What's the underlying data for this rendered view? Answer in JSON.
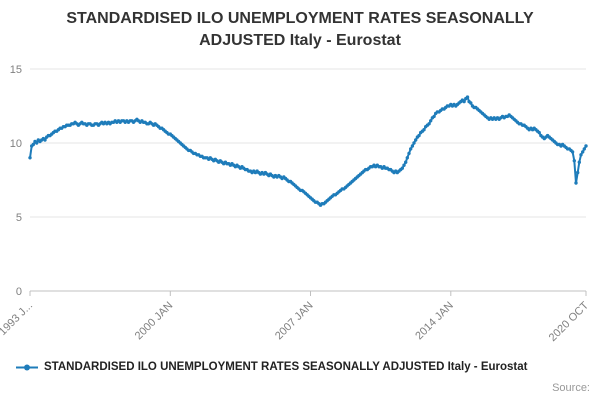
{
  "title": "STANDARDISED ILO UNEMPLOYMENT RATES SEASONALLY ADJUSTED Italy - Eurostat",
  "source_label": "Source:",
  "legend": {
    "label": "STANDARDISED ILO UNEMPLOYMENT RATES SEASONALLY ADJUSTED Italy - Eurostat"
  },
  "colors": {
    "line": "#1e7cba",
    "grid": "#e6e6e6",
    "axis": "#c0c0c0",
    "tick_text": "#808080"
  },
  "chart_data": {
    "type": "line",
    "title": "STANDARDISED ILO UNEMPLOYMENT RATES SEASONALLY ADJUSTED Italy - Eurostat",
    "xlabel": "",
    "ylabel": "",
    "x_start": "1993 JAN",
    "x_end": "2020 OCT",
    "frequency": "monthly",
    "ylim": [
      0,
      15
    ],
    "yticks": [
      0,
      5,
      10,
      15
    ],
    "grid": "horizontal-only",
    "legend_position": "bottom-left",
    "xticks": [
      {
        "label": "1993 J...",
        "index": 0
      },
      {
        "label": "2000 JAN",
        "index": 84
      },
      {
        "label": "2007 JAN",
        "index": 168
      },
      {
        "label": "2014 JAN",
        "index": 252
      },
      {
        "label": "2020 OCT",
        "index": 333
      }
    ],
    "series": [
      {
        "name": "STANDARDISED ILO UNEMPLOYMENT RATES SEASONALLY ADJUSTED Italy - Eurostat",
        "values": [
          9.0,
          9.8,
          9.9,
          10.1,
          10.0,
          10.2,
          10.1,
          10.2,
          10.3,
          10.2,
          10.4,
          10.5,
          10.5,
          10.6,
          10.7,
          10.8,
          10.8,
          10.9,
          11.0,
          11.0,
          11.1,
          11.1,
          11.2,
          11.2,
          11.2,
          11.3,
          11.3,
          11.4,
          11.3,
          11.2,
          11.3,
          11.4,
          11.3,
          11.3,
          11.2,
          11.3,
          11.3,
          11.2,
          11.2,
          11.3,
          11.3,
          11.2,
          11.3,
          11.4,
          11.3,
          11.4,
          11.3,
          11.4,
          11.3,
          11.4,
          11.4,
          11.5,
          11.4,
          11.5,
          11.4,
          11.5,
          11.5,
          11.4,
          11.5,
          11.4,
          11.5,
          11.5,
          11.4,
          11.5,
          11.6,
          11.5,
          11.4,
          11.5,
          11.4,
          11.4,
          11.3,
          11.3,
          11.4,
          11.3,
          11.2,
          11.3,
          11.2,
          11.1,
          11.0,
          11.0,
          10.9,
          10.8,
          10.7,
          10.6,
          10.6,
          10.5,
          10.4,
          10.3,
          10.2,
          10.1,
          10.0,
          9.9,
          9.8,
          9.7,
          9.6,
          9.5,
          9.5,
          9.4,
          9.3,
          9.3,
          9.2,
          9.2,
          9.1,
          9.1,
          9.0,
          9.0,
          9.0,
          8.9,
          9.0,
          8.9,
          8.8,
          8.9,
          8.8,
          8.7,
          8.8,
          8.7,
          8.6,
          8.7,
          8.6,
          8.6,
          8.5,
          8.6,
          8.5,
          8.4,
          8.5,
          8.4,
          8.3,
          8.4,
          8.3,
          8.2,
          8.2,
          8.1,
          8.1,
          8.0,
          8.1,
          8.0,
          8.1,
          8.0,
          7.9,
          8.0,
          7.9,
          8.0,
          7.9,
          7.8,
          7.9,
          7.8,
          7.7,
          7.8,
          7.7,
          7.8,
          7.7,
          7.6,
          7.7,
          7.6,
          7.5,
          7.4,
          7.4,
          7.3,
          7.2,
          7.1,
          7.0,
          6.9,
          6.8,
          6.8,
          6.7,
          6.6,
          6.5,
          6.4,
          6.3,
          6.2,
          6.1,
          6.0,
          6.0,
          5.9,
          5.8,
          5.9,
          5.9,
          6.0,
          6.1,
          6.2,
          6.3,
          6.4,
          6.5,
          6.5,
          6.6,
          6.7,
          6.8,
          6.9,
          6.9,
          7.0,
          7.1,
          7.2,
          7.3,
          7.4,
          7.5,
          7.6,
          7.7,
          7.8,
          7.9,
          8.0,
          8.1,
          8.2,
          8.2,
          8.3,
          8.4,
          8.4,
          8.5,
          8.4,
          8.5,
          8.4,
          8.4,
          8.3,
          8.4,
          8.3,
          8.3,
          8.2,
          8.2,
          8.1,
          8.0,
          8.1,
          8.0,
          8.1,
          8.2,
          8.3,
          8.5,
          8.7,
          9.0,
          9.3,
          9.6,
          9.8,
          10.0,
          10.2,
          10.4,
          10.5,
          10.7,
          10.8,
          10.9,
          11.1,
          11.2,
          11.3,
          11.5,
          11.7,
          11.8,
          12.0,
          12.1,
          12.1,
          12.2,
          12.3,
          12.3,
          12.4,
          12.5,
          12.5,
          12.6,
          12.5,
          12.6,
          12.5,
          12.6,
          12.7,
          12.8,
          12.9,
          12.8,
          13.0,
          13.1,
          12.8,
          12.7,
          12.5,
          12.4,
          12.4,
          12.3,
          12.2,
          12.1,
          12.0,
          11.9,
          11.8,
          11.7,
          11.6,
          11.7,
          11.6,
          11.7,
          11.6,
          11.7,
          11.6,
          11.7,
          11.8,
          11.7,
          11.8,
          11.8,
          11.9,
          11.8,
          11.7,
          11.6,
          11.5,
          11.4,
          11.3,
          11.3,
          11.2,
          11.2,
          11.1,
          11.0,
          10.9,
          11.0,
          10.9,
          11.0,
          10.9,
          10.8,
          10.7,
          10.5,
          10.4,
          10.3,
          10.4,
          10.5,
          10.4,
          10.3,
          10.2,
          10.1,
          10.0,
          9.9,
          9.9,
          9.8,
          9.9,
          9.8,
          9.7,
          9.6,
          9.6,
          9.5,
          9.4,
          8.8,
          7.3,
          8.0,
          8.7,
          9.2,
          9.4,
          9.6,
          9.8
        ]
      }
    ]
  }
}
